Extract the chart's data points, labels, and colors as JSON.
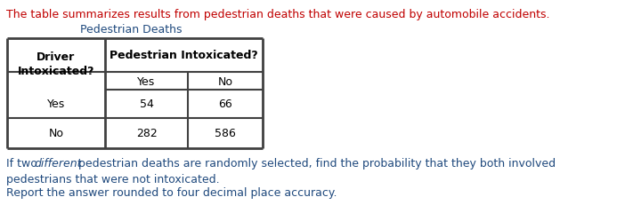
{
  "intro_text": "The table summarizes results from pedestrian deaths that were caused by automobile accidents.",
  "intro_color": "#C00000",
  "table_title": "Pedestrian Deaths",
  "table_title_color": "#1F497D",
  "col_header_main": "Pedestrian Intoxicated?",
  "col_header_sub": [
    "Yes",
    "No"
  ],
  "row_header_line1": "Driver",
  "row_header_line2": "Intoxicated?",
  "row_labels": [
    "Yes",
    "No"
  ],
  "data": [
    [
      54,
      66
    ],
    [
      282,
      586
    ]
  ],
  "footer_line1_pre": "If two ",
  "footer_line1_italic": "different",
  "footer_line1_post": " pedestrian deaths are randomly selected, find the probability that they both involved",
  "footer_line2": "pedestrians that were not intoxicated.",
  "footer_line3": "Report the answer rounded to four decimal place accuracy.",
  "footer_color": "#1F497D",
  "background_color": "#FFFFFF",
  "fontsize": 9.0
}
